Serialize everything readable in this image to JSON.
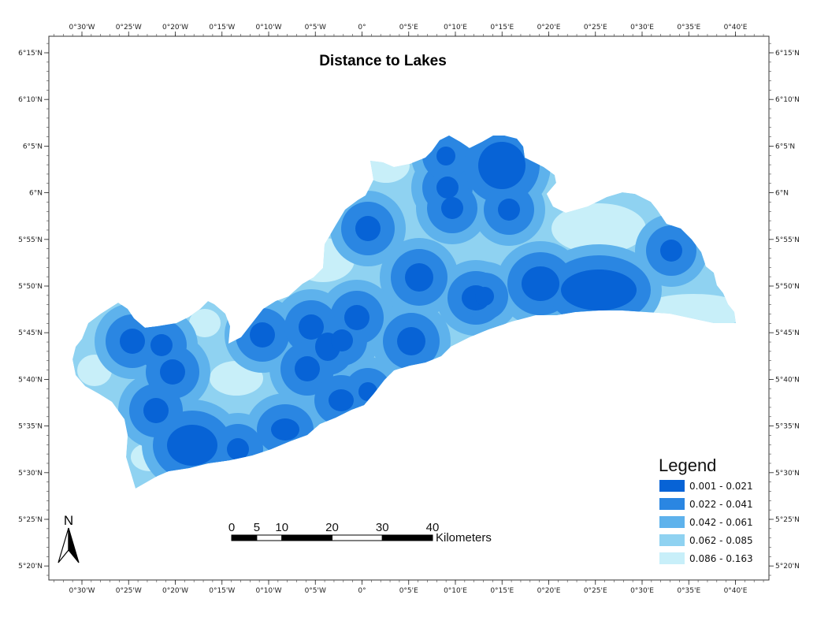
{
  "title": "Distance to Lakes",
  "colors": {
    "c1": "#0763d6",
    "c2": "#2a86e2",
    "c3": "#5eb2ec",
    "c4": "#8fd2f1",
    "c5": "#c8eff9",
    "frame": "#333333"
  },
  "longitude_ticks": [
    "0°30'W",
    "0°25'W",
    "0°20'W",
    "0°15'W",
    "0°10'W",
    "0°5'W",
    "0°",
    "0°5'E",
    "0°10'E",
    "0°15'E",
    "0°20'E",
    "0°25'E",
    "0°30'E",
    "0°35'E",
    "0°40'E"
  ],
  "latitude_ticks": [
    "6°15'N",
    "6°10'N",
    "6°5'N",
    "6°N",
    "5°55'N",
    "5°50'N",
    "5°45'N",
    "5°40'N",
    "5°35'N",
    "5°30'N",
    "5°25'N",
    "5°20'N"
  ],
  "legend": {
    "title": "Legend",
    "classes": [
      {
        "label": "0.001 - 0.021",
        "color": "#0763d6"
      },
      {
        "label": "0.022 - 0.041",
        "color": "#2a86e2"
      },
      {
        "label": "0.042 - 0.061",
        "color": "#5eb2ec"
      },
      {
        "label": "0.062 - 0.085",
        "color": "#8fd2f1"
      },
      {
        "label": "0.086 - 0.163",
        "color": "#c8eff9"
      }
    ]
  },
  "scale_bar": {
    "labels": [
      "0",
      "5",
      "10",
      "20",
      "30",
      "40"
    ],
    "unit": "Kilometers"
  },
  "north_arrow": {
    "label": "N"
  }
}
